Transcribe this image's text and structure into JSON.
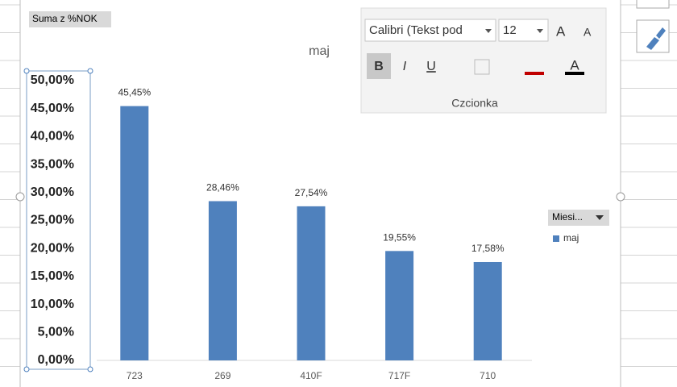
{
  "chart_data": {
    "type": "bar",
    "title": "maj",
    "categories": [
      "723",
      "269",
      "410F",
      "717F",
      "710"
    ],
    "series": [
      {
        "name": "maj",
        "color": "#4f81bd",
        "values": [
          45.45,
          28.46,
          27.54,
          19.55,
          17.58
        ],
        "value_labels": [
          "45,45%",
          "28,46%",
          "27,54%",
          "19,55%",
          "17,58%"
        ]
      }
    ],
    "ylim": [
      0,
      50
    ],
    "yticks": [
      {
        "value": 0,
        "label": "0,00%"
      },
      {
        "value": 5,
        "label": "5,00%"
      },
      {
        "value": 10,
        "label": "10,00%"
      },
      {
        "value": 15,
        "label": "15,00%"
      },
      {
        "value": 20,
        "label": "20,00%"
      },
      {
        "value": 25,
        "label": "25,00%"
      },
      {
        "value": 30,
        "label": "30,00%"
      },
      {
        "value": 35,
        "label": "35,00%"
      },
      {
        "value": 40,
        "label": "40,00%"
      },
      {
        "value": 45,
        "label": "45,00%"
      },
      {
        "value": 50,
        "label": "50,00%"
      }
    ],
    "grid": false
  },
  "pivot_buttons": {
    "value_field": "Suma z %NOK",
    "legend_field": "Miesi..."
  },
  "toolbar": {
    "font_name": "Calibri (Tekst pod",
    "font_size": "12",
    "grow": "A",
    "shrink": "A",
    "bold": "B",
    "italic": "I",
    "underline": "U",
    "font_color": "A",
    "group_label": "Czcionka"
  }
}
